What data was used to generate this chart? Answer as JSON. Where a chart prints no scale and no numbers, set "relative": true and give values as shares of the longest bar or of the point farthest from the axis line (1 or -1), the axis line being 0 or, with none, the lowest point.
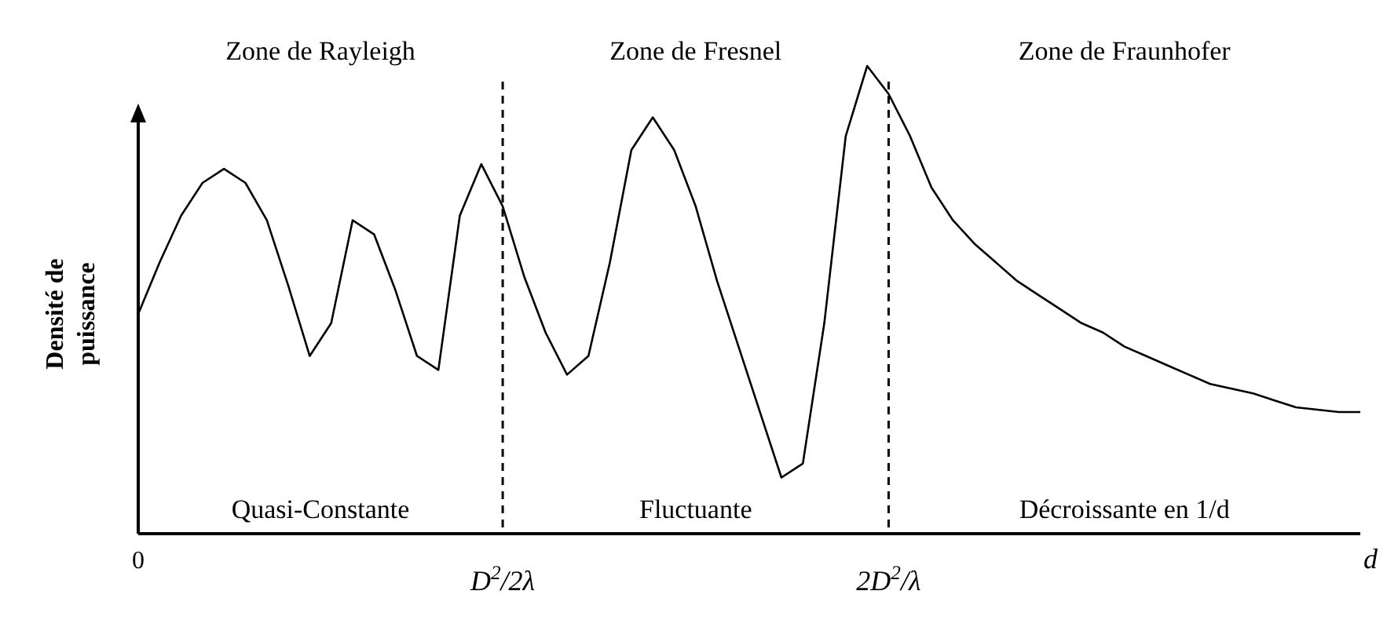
{
  "chart_data": {
    "type": "line",
    "relative": true,
    "xlabel": "d",
    "ylabel": "Densité de puissance",
    "categories": [
      "0",
      null,
      null,
      null,
      null,
      null,
      null,
      null,
      null,
      null,
      null,
      null,
      null,
      null,
      null,
      null,
      null,
      "D$^{2}$/2λ",
      null,
      null,
      null,
      null,
      null,
      null,
      null,
      null,
      null,
      null,
      null,
      null,
      null,
      null,
      null,
      null,
      null,
      "2D$^{2}$/λ",
      null,
      null,
      null,
      null,
      null,
      null,
      null,
      null,
      null,
      null,
      null,
      null,
      null,
      null,
      null,
      null,
      null,
      null,
      null,
      null,
      null,
      null
    ],
    "series": [
      {
        "color": "#000000",
        "values": [
          0.47,
          0.58,
          0.68,
          0.75,
          0.78,
          0.75,
          0.67,
          0.53,
          0.38,
          0.45,
          0.67,
          0.64,
          0.52,
          0.38,
          0.35,
          0.68,
          0.79,
          0.7,
          0.55,
          0.43,
          0.34,
          0.38,
          0.58,
          0.82,
          0.89,
          0.82,
          0.7,
          0.54,
          0.4,
          0.26,
          0.12,
          0.15,
          0.45,
          0.85,
          1.0,
          0.94,
          0.85,
          0.74,
          0.67,
          0.62,
          0.58,
          0.54,
          0.51,
          0.48,
          0.45,
          0.43,
          0.4,
          0.38,
          0.36,
          0.34,
          0.32,
          0.31,
          0.3,
          0.285,
          0.27,
          0.265,
          0.26,
          0.26
        ]
      }
    ],
    "ref_lines": [
      {
        "axis": "x",
        "value": "D$^{2}$/2λ",
        "color": "#000000",
        "line_style": "dashed"
      },
      {
        "axis": "x",
        "value": "2D$^{2}$/λ",
        "color": "#000000",
        "line_style": "dashed"
      }
    ],
    "annotations": [
      "Zone de Rayleigh",
      "Zone de Fresnel",
      "Zone de Fraunhofer",
      "Quasi-Constante",
      "Fluctuante",
      "Décroissante en 1/d"
    ]
  }
}
